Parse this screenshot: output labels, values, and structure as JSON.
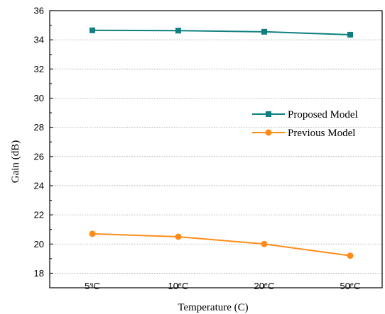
{
  "chart_data": {
    "type": "line",
    "title": "",
    "xlabel": "Temperature (C)",
    "ylabel": "Gain (dB)",
    "categories": [
      "5°C",
      "10°C",
      "20°C",
      "50°C"
    ],
    "ylim": [
      17,
      36
    ],
    "yticks": [
      18,
      20,
      22,
      24,
      26,
      28,
      30,
      32,
      34,
      36
    ],
    "grid": "horizontal-dotted",
    "legend_position": "right",
    "series": [
      {
        "name": "Proposed Model",
        "color": "#0f7f7f",
        "marker": "square",
        "values": [
          34.65,
          34.63,
          34.55,
          34.35
        ]
      },
      {
        "name": "Previous Model",
        "color": "#ff8c1a",
        "marker": "circle",
        "values": [
          20.7,
          20.5,
          20.0,
          19.2
        ]
      }
    ]
  }
}
